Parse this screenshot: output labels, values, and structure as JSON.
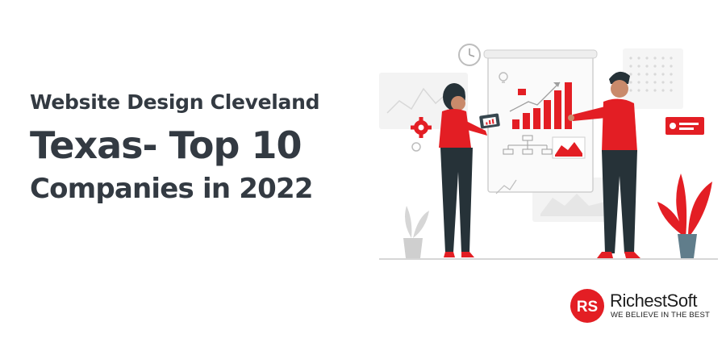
{
  "banner": {
    "headline": {
      "line1": "Website Design Cleveland",
      "line2": "Texas- Top 10",
      "line3": "Companies in 2022"
    },
    "colors": {
      "accent": "#e31e24",
      "text": "#333a42",
      "dark": "#263238",
      "light_gray": "#ebebeb"
    }
  },
  "illustration": {
    "icons": [
      "clock-icon",
      "gear-icon",
      "lightbulb-icon",
      "profile-card-icon",
      "plant-icon",
      "tablet-icon"
    ]
  },
  "logo": {
    "mark": "RS",
    "name": "RichestSoft",
    "tagline": "WE BELIEVE IN THE BEST"
  }
}
